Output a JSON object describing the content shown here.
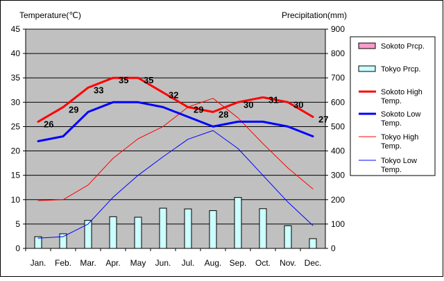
{
  "chart_data": {
    "type": "line",
    "left_axis_title": "Temperature(℃)",
    "right_axis_title": "Precipitation(mm)",
    "categories": [
      "Jan.",
      "Feb.",
      "Mar.",
      "Apr.",
      "May",
      "Jun.",
      "Jul.",
      "Aug.",
      "Sep.",
      "Oct.",
      "Nov.",
      "Dec."
    ],
    "y_left": {
      "min": 0,
      "max": 45,
      "ticks": [
        "0",
        "5",
        "10",
        "15",
        "20",
        "25",
        "30",
        "35",
        "40",
        "45"
      ]
    },
    "y_right": {
      "min": 0,
      "max": 900,
      "ticks": [
        "0",
        "100",
        "200",
        "300",
        "400",
        "500",
        "600",
        "700",
        "800",
        "900"
      ]
    },
    "grid": true,
    "plot_background": "#c0c0c0",
    "legend_position": "right",
    "bar_series": [
      {
        "name": "Sokoto Prcp.",
        "color": "#ff99cc",
        "axis": "right",
        "values": [
          0,
          0,
          0,
          0,
          0,
          0,
          0,
          0,
          0,
          0,
          0,
          0
        ]
      },
      {
        "name": "Tokyo Prcp.",
        "color": "#ccffff",
        "axis": "right",
        "values": [
          48,
          60,
          115,
          130,
          128,
          165,
          162,
          155,
          209,
          163,
          93,
          40
        ]
      }
    ],
    "line_series": [
      {
        "name": "Sokoto High Temp.",
        "color": "#ff0000",
        "width": 3,
        "axis": "left",
        "values": [
          26,
          29,
          33,
          35,
          35,
          32,
          29,
          28,
          30,
          31,
          30,
          27
        ],
        "labels": [
          "26",
          "29",
          "33",
          "35",
          "35",
          "32",
          "29",
          "28",
          "30",
          "31",
          "30",
          "27"
        ]
      },
      {
        "name": "Sokoto Low Temp.",
        "color": "#0000ff",
        "width": 3,
        "axis": "left",
        "values": [
          22,
          23,
          28,
          30,
          30,
          29,
          27,
          25,
          26,
          26,
          25,
          23
        ]
      },
      {
        "name": "Tokyo High Temp.",
        "color": "#ff0000",
        "width": 1,
        "axis": "left",
        "values": [
          9.8,
          10,
          13,
          18.5,
          22.5,
          25,
          29,
          30.8,
          26.8,
          21.5,
          16.5,
          12.2
        ]
      },
      {
        "name": "Tokyo Low Temp.",
        "color": "#0000ff",
        "width": 1,
        "axis": "left",
        "values": [
          2.1,
          2.4,
          5,
          10.5,
          15,
          18.8,
          22.4,
          24.2,
          20.5,
          15,
          9.5,
          4.7
        ]
      }
    ],
    "legend": [
      {
        "label_lines": [
          "Sokoto Prcp."
        ],
        "kind": "box",
        "series": 0
      },
      {
        "label_lines": [
          "Tokyo Prcp."
        ],
        "kind": "box",
        "series": 1
      },
      {
        "label_lines": [
          "Sokoto High",
          "Temp."
        ],
        "kind": "line",
        "series": 0
      },
      {
        "label_lines": [
          "Sokoto Low",
          "Temp."
        ],
        "kind": "line",
        "series": 1
      },
      {
        "label_lines": [
          "Tokyo High",
          "Temp."
        ],
        "kind": "line",
        "series": 2
      },
      {
        "label_lines": [
          "Tokyo Low",
          "Temp."
        ],
        "kind": "line",
        "series": 3
      }
    ]
  }
}
